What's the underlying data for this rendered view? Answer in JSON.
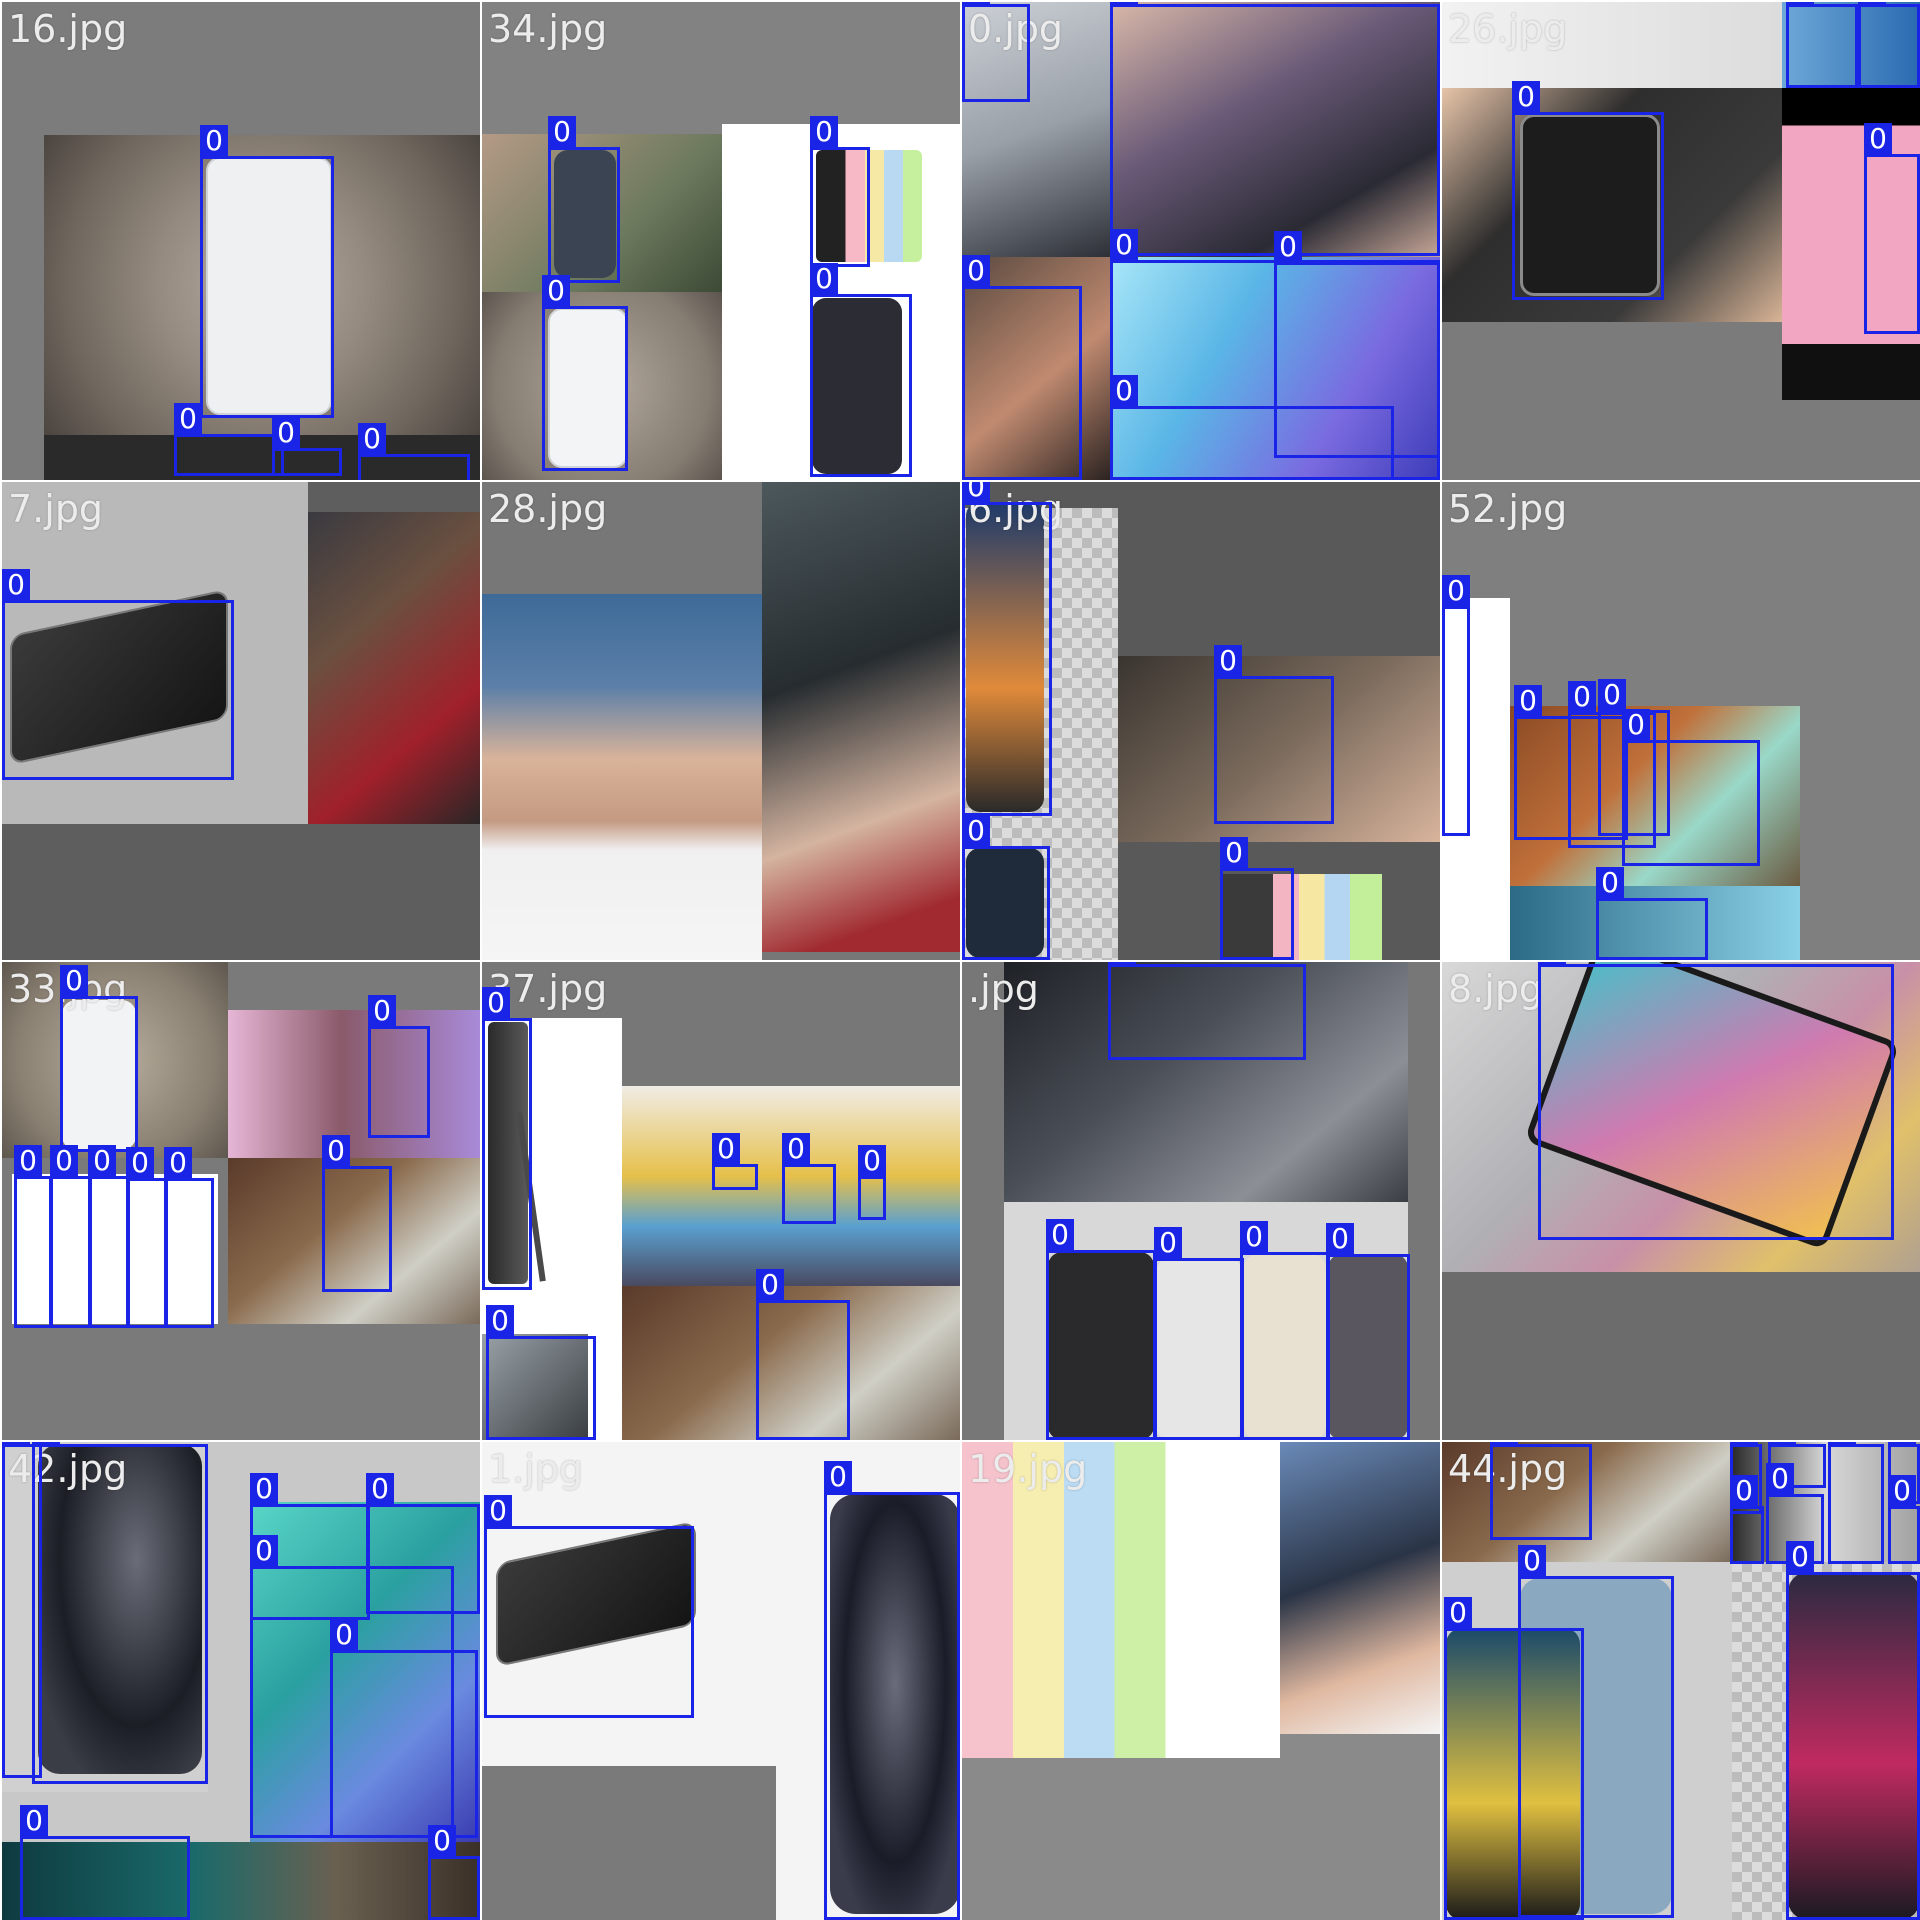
{
  "mosaic": {
    "class_label": "0",
    "box_color": "#1a24e6",
    "tiles": [
      {
        "label": "16.jpg",
        "bg": "#7c7c7c"
      },
      {
        "label": "34.jpg",
        "bg": "#828282"
      },
      {
        "label": "0.jpg",
        "bg": "#7e7e7e"
      },
      {
        "label": "26.jpg",
        "bg": "#7b7b7b"
      },
      {
        "label": "7.jpg",
        "bg": "#5e5e5e"
      },
      {
        "label": "28.jpg",
        "bg": "#777777"
      },
      {
        "label": "6.jpg",
        "bg": "#595959"
      },
      {
        "label": "52.jpg",
        "bg": "#7f7f7f"
      },
      {
        "label": "33.jpg",
        "bg": "#7a7a7a"
      },
      {
        "label": "37.jpg",
        "bg": "#777777"
      },
      {
        "label": ".jpg",
        "bg": "#777777"
      },
      {
        "label": "8.jpg",
        "bg": "#6c6c6c"
      },
      {
        "label": "42.jpg",
        "bg": "#c8c8c8"
      },
      {
        "label": "1.jpg",
        "bg": "#f4f4f4"
      },
      {
        "label": "19.jpg",
        "bg": "#8a8a8a"
      },
      {
        "label": "44.jpg",
        "bg": "#cfcfcf"
      }
    ]
  }
}
